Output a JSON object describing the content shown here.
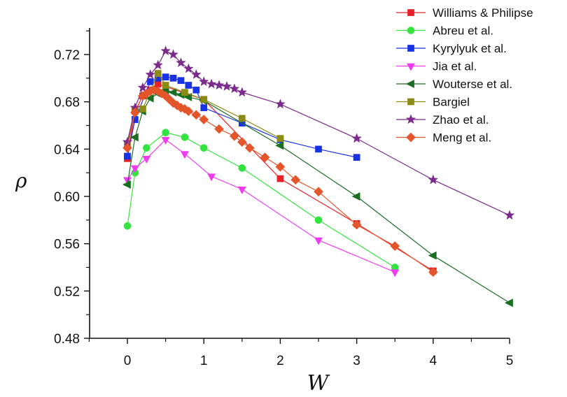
{
  "chart_data": {
    "type": "line",
    "title": "",
    "xlabel": "W",
    "ylabel": "ρ",
    "xlim": [
      -0.5,
      5
    ],
    "ylim": [
      0.48,
      0.74
    ],
    "xticks": [
      "0",
      "1",
      "2",
      "3",
      "4",
      "5"
    ],
    "yticks": [
      "0.48",
      "0.52",
      "0.56",
      "0.60",
      "0.64",
      "0.68",
      "0.72"
    ],
    "grid": false,
    "legend_position": "top-right",
    "series": [
      {
        "name": "Williams & Philipse",
        "color": "#e8202a",
        "marker": "square",
        "x": [
          0,
          0.1,
          0.2,
          0.3,
          0.4,
          1.0,
          2.0,
          3.0,
          4.0
        ],
        "y": [
          0.632,
          0.672,
          0.685,
          0.69,
          0.695,
          0.682,
          0.615,
          0.577,
          0.537
        ]
      },
      {
        "name": "Abreu et al.",
        "color": "#33e33f",
        "marker": "circle",
        "x": [
          0,
          0.1,
          0.25,
          0.5,
          0.75,
          1.0,
          1.5,
          2.5,
          3.5
        ],
        "y": [
          0.575,
          0.62,
          0.641,
          0.654,
          0.65,
          0.641,
          0.624,
          0.58,
          0.54
        ]
      },
      {
        "name": "Kyrylyuk et al.",
        "color": "#1832e6",
        "marker": "square",
        "x": [
          0,
          0.1,
          0.3,
          0.4,
          0.5,
          0.6,
          0.7,
          0.8,
          0.9,
          1.0,
          1.5,
          2.0,
          2.5,
          3.0
        ],
        "y": [
          0.634,
          0.665,
          0.697,
          0.7,
          0.701,
          0.7,
          0.698,
          0.694,
          0.69,
          0.675,
          0.662,
          0.648,
          0.64,
          0.633
        ]
      },
      {
        "name": "Jia et al.",
        "color": "#f03cf0",
        "marker": "triangle-down",
        "x": [
          0,
          0.1,
          0.25,
          0.5,
          0.75,
          1.1,
          1.5,
          2.5,
          3.5
        ],
        "y": [
          0.614,
          0.624,
          0.632,
          0.648,
          0.636,
          0.617,
          0.606,
          0.563,
          0.536
        ]
      },
      {
        "name": "Wouterse et al.",
        "color": "#1a6e22",
        "marker": "triangle-left",
        "x": [
          0,
          0.1,
          0.2,
          0.3,
          0.4,
          0.5,
          0.6,
          0.7,
          0.8,
          1.0,
          2.0,
          3.0,
          4.0,
          5.0
        ],
        "y": [
          0.61,
          0.65,
          0.672,
          0.683,
          0.687,
          0.69,
          0.688,
          0.686,
          0.684,
          0.681,
          0.643,
          0.6,
          0.55,
          0.51
        ]
      },
      {
        "name": "Bargiel",
        "color": "#8b8a13",
        "marker": "square",
        "x": [
          0,
          0.1,
          0.2,
          0.4,
          0.5,
          0.75,
          1.0,
          1.5,
          2.0
        ],
        "y": [
          0.644,
          0.673,
          0.674,
          0.704,
          0.694,
          0.688,
          0.682,
          0.666,
          0.649
        ]
      },
      {
        "name": "Zhao et al.",
        "color": "#7b2b8c",
        "marker": "star",
        "x": [
          0,
          0.1,
          0.2,
          0.3,
          0.4,
          0.5,
          0.6,
          0.7,
          0.8,
          0.9,
          1.0,
          1.1,
          1.2,
          1.3,
          1.4,
          1.5,
          2.0,
          3.0,
          4.0,
          5.0
        ],
        "y": [
          0.646,
          0.675,
          0.692,
          0.703,
          0.711,
          0.723,
          0.72,
          0.713,
          0.708,
          0.703,
          0.697,
          0.695,
          0.694,
          0.693,
          0.691,
          0.688,
          0.678,
          0.649,
          0.614,
          0.584
        ]
      },
      {
        "name": "Meng et al.",
        "color": "#e4552a",
        "marker": "diamond",
        "x": [
          0,
          0.1,
          0.2,
          0.25,
          0.3,
          0.35,
          0.4,
          0.45,
          0.5,
          0.55,
          0.6,
          0.65,
          0.7,
          0.75,
          0.8,
          0.9,
          1.0,
          1.2,
          1.4,
          1.5,
          1.6,
          1.8,
          2.0,
          2.2,
          2.5,
          3.0,
          3.5,
          4.0
        ],
        "y": [
          0.641,
          0.671,
          0.685,
          0.687,
          0.689,
          0.69,
          0.689,
          0.687,
          0.685,
          0.682,
          0.679,
          0.677,
          0.675,
          0.674,
          0.672,
          0.669,
          0.665,
          0.657,
          0.651,
          0.646,
          0.641,
          0.633,
          0.625,
          0.614,
          0.604,
          0.576,
          0.558,
          0.536
        ]
      }
    ]
  }
}
